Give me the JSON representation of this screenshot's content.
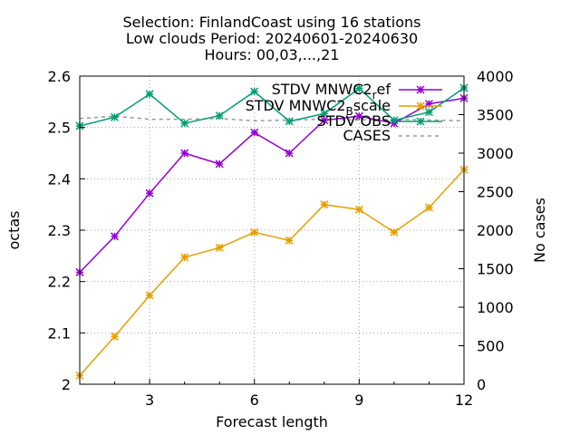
{
  "chart_data": {
    "type": "line",
    "title": [
      "Selection: FinlandCoast using    16 stations",
      "Low clouds   Period: 20240601-20240630",
      "Hours: 00,03,...,21"
    ],
    "xlabel": "Forecast length",
    "ylabel": "octas",
    "y2label": "No cases",
    "xlim": [
      1,
      12
    ],
    "ylim": [
      2.0,
      2.6
    ],
    "y2lim": [
      0,
      4000
    ],
    "x_ticks": [
      3,
      6,
      9,
      12
    ],
    "y_ticks": [
      2,
      2.1,
      2.2,
      2.3,
      2.4,
      2.5,
      2.6
    ],
    "y2_ticks": [
      0,
      500,
      1000,
      1500,
      2000,
      2500,
      3000,
      3500,
      4000
    ],
    "grid": true,
    "legend_position": "top-right",
    "x": [
      1,
      2,
      3,
      4,
      5,
      6,
      7,
      8,
      9,
      10,
      11,
      12
    ],
    "series": [
      {
        "name": "STDV MNWC2_ref",
        "legend_main": "STDV MNWC2",
        "legend_sub": "r",
        "legend_tail": "ef",
        "color": "#9400d3",
        "axis": "y1",
        "dashed": false,
        "values": [
          2.218,
          2.288,
          2.372,
          2.45,
          2.429,
          2.49,
          2.45,
          2.514,
          2.522,
          2.508,
          2.546,
          2.557
        ]
      },
      {
        "name": "STDV MNWC2_Bscale",
        "legend_main": "STDV MNWC2",
        "legend_sub": "B",
        "legend_tail": "scale",
        "color": "#e69f00",
        "axis": "y1",
        "dashed": false,
        "values": [
          2.017,
          2.093,
          2.173,
          2.247,
          2.266,
          2.296,
          2.28,
          2.35,
          2.34,
          2.296,
          2.344,
          2.418
        ]
      },
      {
        "name": "STDV OBS",
        "legend_main": "STDV OBS",
        "legend_sub": "",
        "legend_tail": "",
        "color": "#009e73",
        "axis": "y1",
        "dashed": false,
        "values": [
          2.503,
          2.52,
          2.565,
          2.508,
          2.523,
          2.57,
          2.512,
          2.527,
          2.576,
          2.514,
          2.53,
          2.577
        ]
      },
      {
        "name": "CASES",
        "legend_main": "CASES",
        "legend_sub": "",
        "legend_tail": "",
        "color": "#999999",
        "axis": "y2",
        "dashed": true,
        "values": [
          3450,
          3480,
          3440,
          3440,
          3450,
          3420,
          3430,
          3440,
          3430,
          3440,
          3430,
          3420
        ]
      }
    ]
  }
}
